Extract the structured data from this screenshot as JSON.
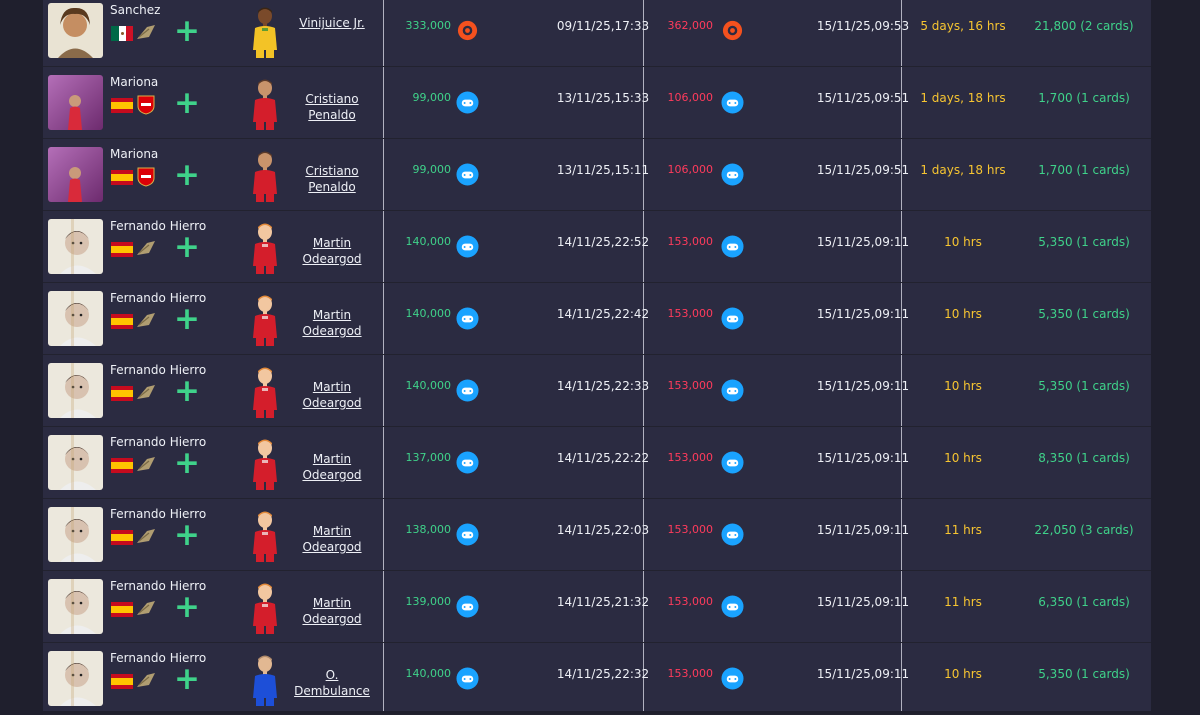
{
  "colors": {
    "bg": "#1f1f2d",
    "table": "#2b2b41",
    "profit": "#3fd28a",
    "loss": "#ff3b5c",
    "duration": "#f7c531",
    "psn": "#1aa3ff",
    "xbox_orange": "#f4511e"
  },
  "rows": [
    {
      "player": "Sanchez",
      "flag": "mexico-flag",
      "club": "icon-club",
      "user_line1": "Vinijuice Jr.",
      "user_line2": "",
      "avatar": "yellow-kit",
      "bought": "333,000",
      "platform": "origin",
      "buy_date": "09/11/25,17:33",
      "sold": "362,000",
      "sell_platform": "origin",
      "sell_date": "15/11/25,09:53",
      "duration": "5 days, 16 hrs",
      "profit": "21,800 (2 cards)"
    },
    {
      "player": "Mariona",
      "flag": "spain-flag",
      "club": "arsenal-badge",
      "user_line1": "Cristiano",
      "user_line2": "Penaldo",
      "avatar": "red-kit",
      "bought": "99,000",
      "platform": "playstation",
      "buy_date": "13/11/25,15:33",
      "sold": "106,000",
      "sell_platform": "playstation",
      "sell_date": "15/11/25,09:51",
      "duration": "1 days, 18 hrs",
      "profit": "1,700 (1 cards)"
    },
    {
      "player": "Mariona",
      "flag": "spain-flag",
      "club": "arsenal-badge",
      "user_line1": "Cristiano",
      "user_line2": "Penaldo",
      "avatar": "red-kit",
      "bought": "99,000",
      "platform": "playstation",
      "buy_date": "13/11/25,15:11",
      "sold": "106,000",
      "sell_platform": "playstation",
      "sell_date": "15/11/25,09:51",
      "duration": "1 days, 18 hrs",
      "profit": "1,700 (1 cards)"
    },
    {
      "player": "Fernando Hierro",
      "flag": "spain-flag",
      "club": "icon-club",
      "user_line1": "Martin",
      "user_line2": "Odeargod",
      "avatar": "red-kit-blond",
      "bought": "140,000",
      "platform": "playstation",
      "buy_date": "14/11/25,22:52",
      "sold": "153,000",
      "sell_platform": "playstation",
      "sell_date": "15/11/25,09:11",
      "duration": "10 hrs",
      "profit": "5,350 (1 cards)"
    },
    {
      "player": "Fernando Hierro",
      "flag": "spain-flag",
      "club": "icon-club",
      "user_line1": "Martin",
      "user_line2": "Odeargod",
      "avatar": "red-kit-blond",
      "bought": "140,000",
      "platform": "playstation",
      "buy_date": "14/11/25,22:42",
      "sold": "153,000",
      "sell_platform": "playstation",
      "sell_date": "15/11/25,09:11",
      "duration": "10 hrs",
      "profit": "5,350 (1 cards)"
    },
    {
      "player": "Fernando Hierro",
      "flag": "spain-flag",
      "club": "icon-club",
      "user_line1": "Martin",
      "user_line2": "Odeargod",
      "avatar": "red-kit-blond",
      "bought": "140,000",
      "platform": "playstation",
      "buy_date": "14/11/25,22:33",
      "sold": "153,000",
      "sell_platform": "playstation",
      "sell_date": "15/11/25,09:11",
      "duration": "10 hrs",
      "profit": "5,350 (1 cards)"
    },
    {
      "player": "Fernando Hierro",
      "flag": "spain-flag",
      "club": "icon-club",
      "user_line1": "Martin",
      "user_line2": "Odeargod",
      "avatar": "red-kit-blond",
      "bought": "137,000",
      "platform": "playstation",
      "buy_date": "14/11/25,22:22",
      "sold": "153,000",
      "sell_platform": "playstation",
      "sell_date": "15/11/25,09:11",
      "duration": "10 hrs",
      "profit": "8,350 (1 cards)"
    },
    {
      "player": "Fernando Hierro",
      "flag": "spain-flag",
      "club": "icon-club",
      "user_line1": "Martin",
      "user_line2": "Odeargod",
      "avatar": "red-kit-blond",
      "bought": "138,000",
      "platform": "playstation",
      "buy_date": "14/11/25,22:03",
      "sold": "153,000",
      "sell_platform": "playstation",
      "sell_date": "15/11/25,09:11",
      "duration": "11 hrs",
      "profit": "22,050 (3 cards)"
    },
    {
      "player": "Fernando Hierro",
      "flag": "spain-flag",
      "club": "icon-club",
      "user_line1": "Martin",
      "user_line2": "Odeargod",
      "avatar": "red-kit-blond",
      "bought": "139,000",
      "platform": "playstation",
      "buy_date": "14/11/25,21:32",
      "sold": "153,000",
      "sell_platform": "playstation",
      "sell_date": "15/11/25,09:11",
      "duration": "11 hrs",
      "profit": "6,350 (1 cards)"
    },
    {
      "player": "Fernando Hierro",
      "flag": "spain-flag",
      "club": "icon-club",
      "user_line1": "O.",
      "user_line2": "Dembulance",
      "avatar": "blue-kit",
      "bought": "140,000",
      "platform": "playstation",
      "buy_date": "14/11/25,22:32",
      "sold": "153,000",
      "sell_platform": "playstation",
      "sell_date": "15/11/25,09:11",
      "duration": "10 hrs",
      "profit": "5,350 (1 cards)"
    }
  ]
}
